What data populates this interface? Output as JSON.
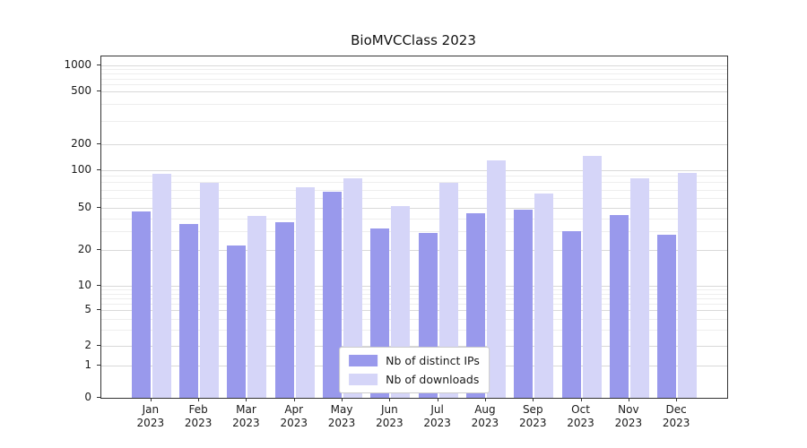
{
  "title": "BioMVCClass 2023",
  "chart_data": {
    "type": "bar",
    "title": "BioMVCClass 2023",
    "categories": [
      "Jan",
      "Feb",
      "Mar",
      "Apr",
      "May",
      "Jun",
      "Jul",
      "Aug",
      "Sep",
      "Oct",
      "Nov",
      "Dec"
    ],
    "year_label": "2023",
    "series": [
      {
        "name": "Nb of distinct IPs",
        "color": "#9999ec",
        "values": [
          46,
          35,
          22,
          37,
          67,
          32,
          29,
          45,
          48,
          30,
          43,
          28
        ]
      },
      {
        "name": "Nb of downloads",
        "color": "#d5d5f8",
        "values": [
          93,
          79,
          42,
          73,
          86,
          52,
          79,
          130,
          65,
          145,
          86,
          95
        ]
      }
    ],
    "yticks": [
      0,
      1,
      2,
      5,
      10,
      20,
      50,
      100,
      200,
      500,
      1000
    ],
    "xlabel": "",
    "ylabel": "",
    "scale": "log-like",
    "grid": true,
    "legend_position": "bottom-center"
  }
}
